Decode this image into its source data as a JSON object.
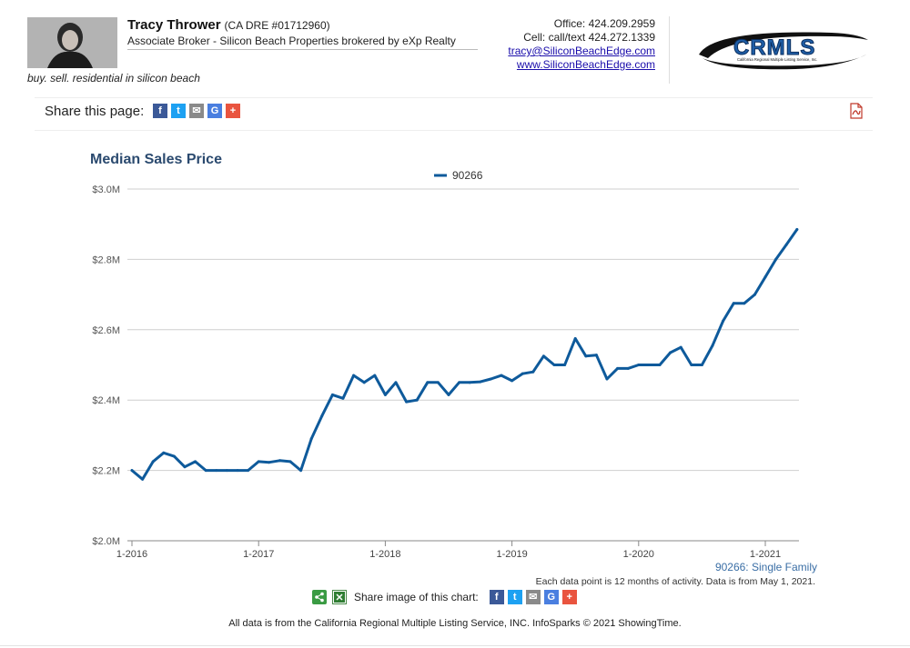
{
  "agent": {
    "name": "Tracy Thrower",
    "dre": "(CA DRE #01712960)",
    "title": "Associate Broker - Silicon Beach Properties brokered by eXp Realty",
    "tagline": "buy. sell. residential in silicon beach"
  },
  "contact": {
    "office": "Office: 424.209.2959",
    "cell": "Cell: call/text 424.272.1339",
    "email": "tracy@SiliconBeachEdge.com",
    "website": "www.SiliconBeachEdge.com"
  },
  "logo": {
    "text": "CRMLS",
    "subtext": "California Regional Multiple Listing Service, Inc."
  },
  "share": {
    "label": "Share this page:"
  },
  "share_chart": {
    "label": "Share image of this chart:"
  },
  "icons": {
    "facebook": "f",
    "twitter": "t",
    "email": "✉",
    "google": "G",
    "plus": "+"
  },
  "colors": {
    "line": "#0e5a9b",
    "title": "#2b4a6f",
    "facebook": "#3b5998",
    "twitter": "#1da1f2",
    "email": "#8a8a8a",
    "google": "#4a7fe0",
    "plus": "#e9543f"
  },
  "footer": {
    "text": "All data is from the California Regional Multiple Listing Service, INC. InfoSparks © 2021 ShowingTime."
  },
  "chart_data": {
    "type": "line",
    "title": "Median Sales Price",
    "legend": "top-center",
    "grid": true,
    "series_label": "90266: Single Family",
    "note": "Each data point is 12 months of activity. Data is from May 1, 2021.",
    "x_ticks": [
      "1-2016",
      "1-2017",
      "1-2018",
      "1-2019",
      "1-2020",
      "1-2021"
    ],
    "y_ticks": [
      "$2.0M",
      "$2.2M",
      "$2.4M",
      "$2.6M",
      "$2.8M",
      "$3.0M"
    ],
    "ylim": [
      2.0,
      3.0
    ],
    "x_start": "2016-01",
    "series": [
      {
        "name": "90266",
        "values": [
          2.2,
          2.175,
          2.225,
          2.25,
          2.24,
          2.21,
          2.225,
          2.2,
          2.2,
          2.2,
          2.2,
          2.2,
          2.225,
          2.223,
          2.228,
          2.225,
          2.2,
          2.29,
          2.355,
          2.415,
          2.405,
          2.47,
          2.45,
          2.47,
          2.415,
          2.45,
          2.395,
          2.4,
          2.45,
          2.45,
          2.415,
          2.45,
          2.45,
          2.452,
          2.46,
          2.47,
          2.455,
          2.475,
          2.48,
          2.525,
          2.5,
          2.5,
          2.575,
          2.525,
          2.528,
          2.46,
          2.49,
          2.49,
          2.5,
          2.5,
          2.5,
          2.535,
          2.55,
          2.5,
          2.5,
          2.555,
          2.625,
          2.675,
          2.675,
          2.7,
          2.75,
          2.8,
          2.842,
          2.885
        ]
      }
    ]
  }
}
